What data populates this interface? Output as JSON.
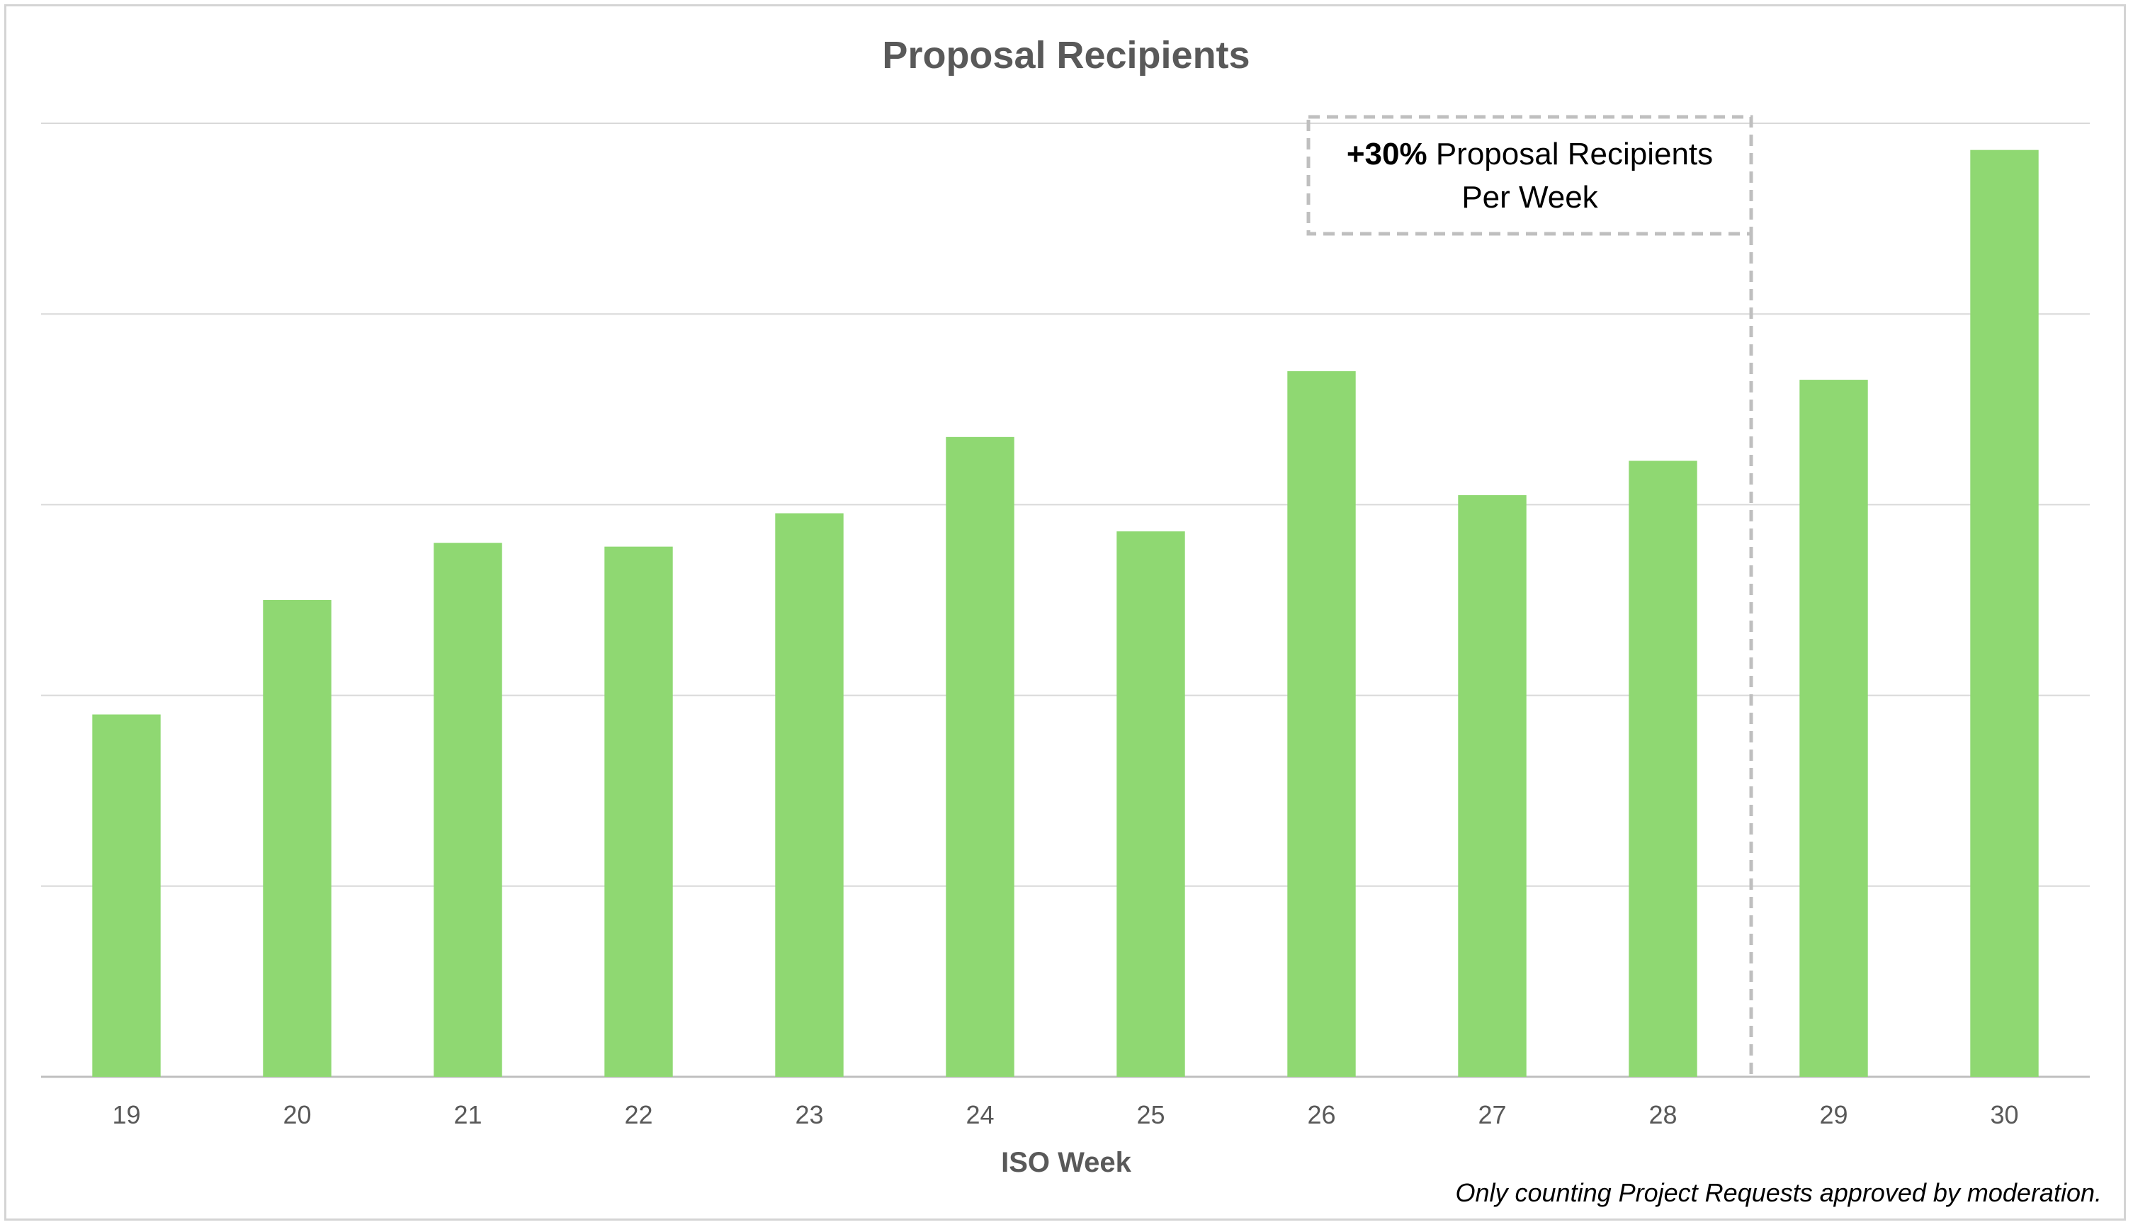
{
  "chart_data": {
    "type": "bar",
    "title": "Proposal Recipients",
    "xlabel": "ISO Week",
    "ylabel": "",
    "categories": [
      "19",
      "20",
      "21",
      "22",
      "23",
      "24",
      "25",
      "26",
      "27",
      "28",
      "29",
      "30"
    ],
    "values": [
      38,
      50,
      56,
      55.6,
      59.1,
      67.1,
      57.2,
      74,
      61,
      64.6,
      73.1,
      97.2
    ],
    "ylim": [
      0,
      100
    ],
    "y_ticks_shown": false,
    "grid": true,
    "bar_color": "#8fd872",
    "annotation": {
      "bold_part": "+30%",
      "line1_rest": " Proposal Recipients",
      "line2": "Per Week",
      "applies_from_category": "29"
    },
    "footnote": "Only counting Project Requests approved by moderation."
  }
}
